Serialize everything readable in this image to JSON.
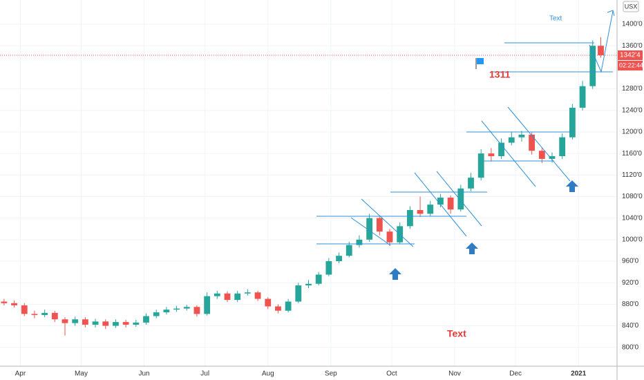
{
  "chart_data": {
    "type": "candlestick",
    "up_color": "#26a69a",
    "down_color": "#ef5350",
    "grid": true,
    "currency": "USX",
    "last_price": 13424,
    "last_price_label": "1342'4",
    "countdown": "02:22:44",
    "annotations": [
      "Text",
      "1311",
      "Text"
    ],
    "xlim": [
      -10,
      294
    ],
    "xticks": [
      {
        "value": 0,
        "label": "Apr"
      },
      {
        "value": 30,
        "label": "May"
      },
      {
        "value": 61,
        "label": "Jun"
      },
      {
        "value": 91,
        "label": "Jul"
      },
      {
        "value": 122,
        "label": "Aug"
      },
      {
        "value": 153,
        "label": "Sep"
      },
      {
        "value": 183,
        "label": "Oct"
      },
      {
        "value": 214,
        "label": "Nov"
      },
      {
        "value": 244,
        "label": "Dec"
      },
      {
        "value": 275,
        "label": "2021"
      }
    ],
    "ylim": [
      7650,
      14450
    ],
    "yticks": [
      {
        "value": 8000,
        "label": "800'0"
      },
      {
        "value": 8400,
        "label": "840'0"
      },
      {
        "value": 8800,
        "label": "880'0"
      },
      {
        "value": 9200,
        "label": "920'0"
      },
      {
        "value": 9600,
        "label": "960'0"
      },
      {
        "value": 10000,
        "label": "1000'0"
      },
      {
        "value": 10400,
        "label": "1040'0"
      },
      {
        "value": 10800,
        "label": "1080'0"
      },
      {
        "value": 11200,
        "label": "1120'0"
      },
      {
        "value": 11600,
        "label": "1160'0"
      },
      {
        "value": 12000,
        "label": "1200'0"
      },
      {
        "value": 12400,
        "label": "1240'0"
      },
      {
        "value": 12800,
        "label": "1280'0"
      },
      {
        "value": 13600,
        "label": "1360'0"
      },
      {
        "value": 14000,
        "label": "1400'0"
      }
    ],
    "x": [
      -8,
      -3,
      2,
      7,
      12,
      17,
      22,
      27,
      32,
      37,
      42,
      47,
      52,
      57,
      62,
      67,
      72,
      77,
      82,
      87,
      92,
      97,
      102,
      107,
      112,
      117,
      122,
      127,
      132,
      137,
      142,
      147,
      152,
      157,
      162,
      167,
      172,
      177,
      182,
      187,
      192,
      197,
      202,
      207,
      212,
      217,
      222,
      227,
      232,
      237,
      242,
      247,
      252,
      257,
      262,
      267,
      272,
      277,
      282,
      286
    ],
    "open": [
      8850,
      8820,
      8780,
      8620,
      8600,
      8640,
      8520,
      8450,
      8520,
      8420,
      8480,
      8400,
      8470,
      8420,
      8460,
      8580,
      8650,
      8700,
      8720,
      8750,
      8620,
      8950,
      9000,
      8880,
      9000,
      9020,
      8900,
      8760,
      8680,
      8850,
      9150,
      9180,
      9350,
      9600,
      9700,
      9900,
      10000,
      10400,
      10150,
      9950,
      10250,
      10550,
      10480,
      10650,
      10780,
      10560,
      10950,
      11150,
      11600,
      11550,
      11800,
      11900,
      11950,
      11650,
      11500,
      11550,
      11900,
      12450,
      12850,
      13600
    ],
    "high": [
      8900,
      8870,
      8820,
      8680,
      8700,
      8680,
      8560,
      8570,
      8560,
      8530,
      8520,
      8520,
      8510,
      8510,
      8630,
      8700,
      8750,
      8770,
      8790,
      8780,
      9020,
      9050,
      9040,
      9050,
      9080,
      9050,
      8930,
      8800,
      8900,
      9200,
      9250,
      9400,
      9660,
      9760,
      9960,
      10080,
      10480,
      10440,
      10200,
      10320,
      10620,
      10800,
      10720,
      10850,
      10820,
      11020,
      11240,
      11680,
      11700,
      11880,
      12000,
      12020,
      11990,
      11700,
      11620,
      11970,
      12520,
      12950,
      13700,
      13760
    ],
    "low": [
      8780,
      8740,
      8580,
      8540,
      8560,
      8470,
      8220,
      8400,
      8370,
      8370,
      8340,
      8360,
      8370,
      8380,
      8420,
      8540,
      8610,
      8660,
      8680,
      8570,
      8590,
      8900,
      8840,
      8840,
      8960,
      8860,
      8710,
      8630,
      8650,
      8820,
      9100,
      9150,
      9320,
      9560,
      9670,
      9850,
      9960,
      10080,
      9880,
      9920,
      10200,
      10420,
      10430,
      10600,
      10480,
      10520,
      10900,
      11100,
      11450,
      11500,
      11750,
      11820,
      11580,
      11420,
      11430,
      11500,
      11860,
      12400,
      12800,
      13380
    ],
    "close": [
      8820,
      8780,
      8620,
      8600,
      8640,
      8520,
      8450,
      8520,
      8420,
      8480,
      8400,
      8470,
      8420,
      8460,
      8580,
      8650,
      8700,
      8720,
      8750,
      8620,
      8950,
      9000,
      8880,
      9000,
      9020,
      8900,
      8760,
      8680,
      8850,
      9150,
      9180,
      9350,
      9600,
      9700,
      9900,
      10000,
      10400,
      10150,
      9950,
      10250,
      10550,
      10480,
      10650,
      10780,
      10560,
      10950,
      11150,
      11600,
      11550,
      11800,
      11900,
      11950,
      11650,
      11500,
      11550,
      11900,
      12450,
      12850,
      13600,
      13424
    ]
  }
}
